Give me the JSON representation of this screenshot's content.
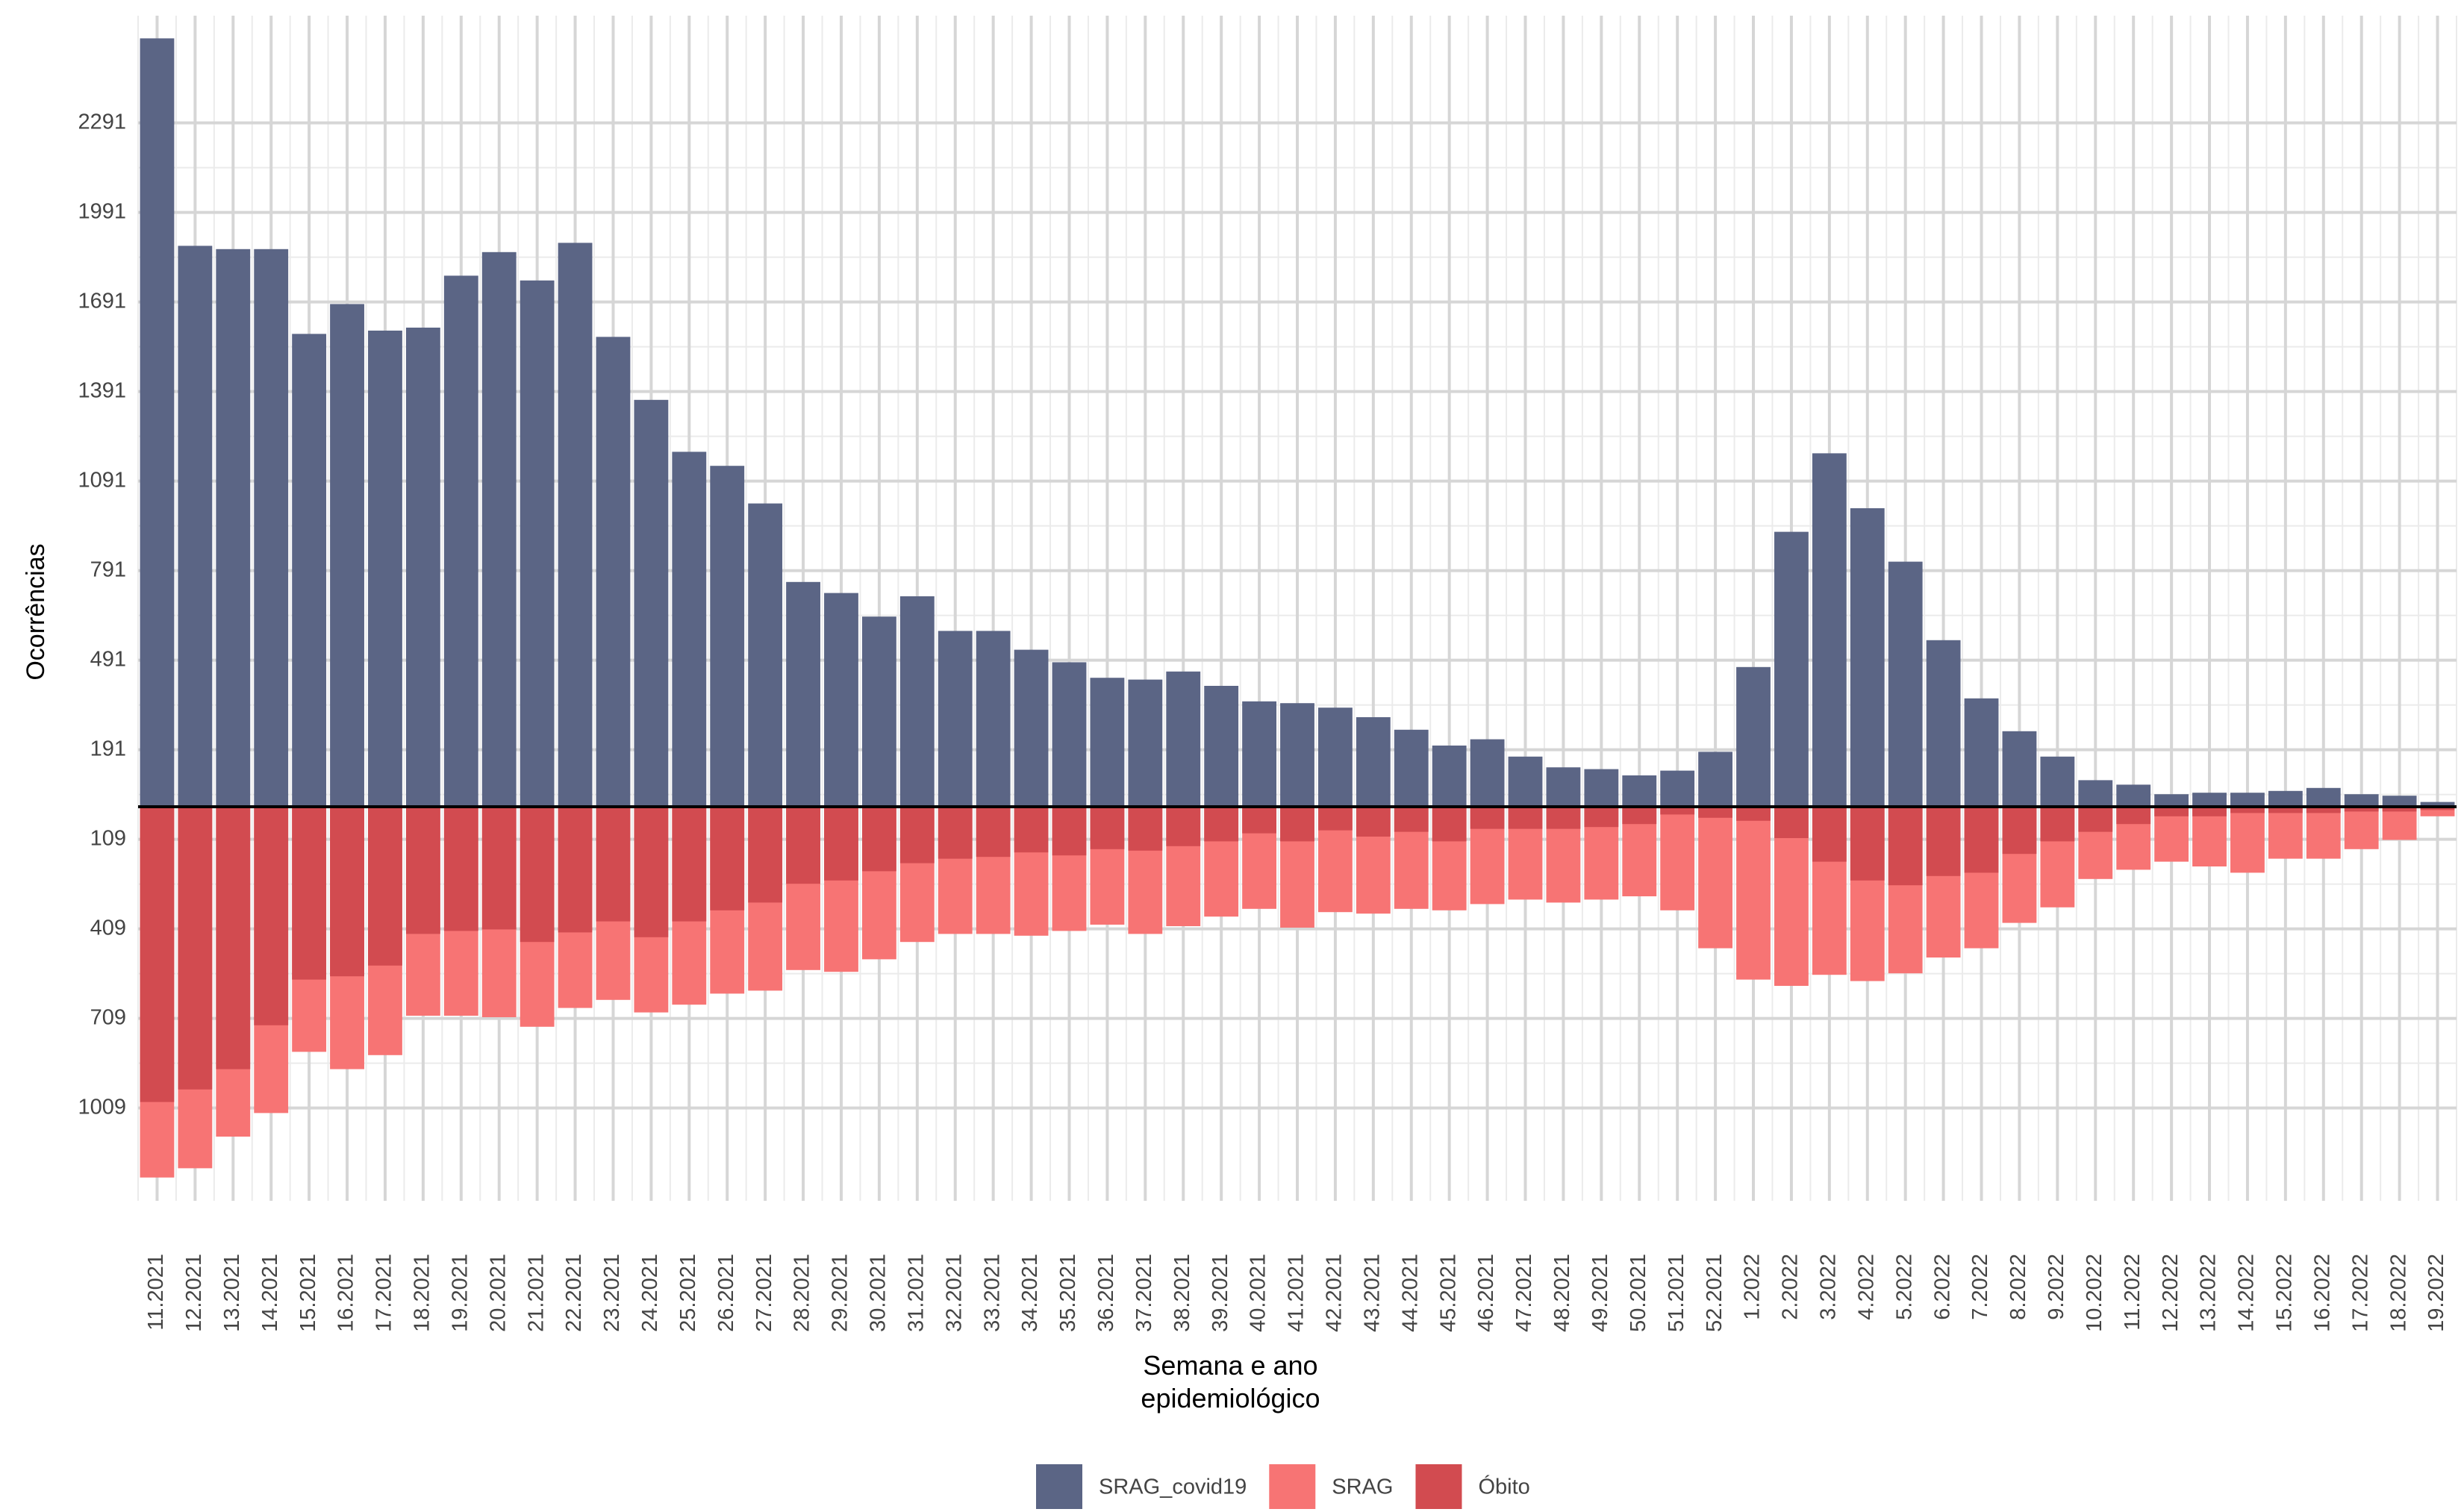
{
  "chart_data": {
    "type": "diverging_bar",
    "x_label": "Semana e ano\nepidemiológico",
    "y_label": "Ocorrências",
    "categories": [
      "11.2021",
      "12.2021",
      "13.2021",
      "14.2021",
      "15.2021",
      "16.2021",
      "17.2021",
      "18.2021",
      "19.2021",
      "20.2021",
      "21.2021",
      "22.2021",
      "23.2021",
      "24.2021",
      "25.2021",
      "26.2021",
      "27.2021",
      "28.2021",
      "29.2021",
      "30.2021",
      "31.2021",
      "32.2021",
      "33.2021",
      "34.2021",
      "35.2021",
      "36.2021",
      "37.2021",
      "38.2021",
      "39.2021",
      "40.2021",
      "41.2021",
      "42.2021",
      "43.2021",
      "44.2021",
      "45.2021",
      "46.2021",
      "47.2021",
      "48.2021",
      "49.2021",
      "50.2021",
      "51.2021",
      "52.2021",
      "1.2022",
      "2.2022",
      "3.2022",
      "4.2022",
      "5.2022",
      "6.2022",
      "7.2022",
      "8.2022",
      "9.2022",
      "10.2022",
      "11.2022",
      "12.2022",
      "13.2022",
      "14.2022",
      "15.2022",
      "16.2022",
      "17.2022",
      "18.2022",
      "19.2022"
    ],
    "series": [
      {
        "name": "SRAG_covid19",
        "color": "#5b6585",
        "values": [
          2574,
          1879,
          1868,
          1868,
          1584,
          1684,
          1595,
          1605,
          1779,
          1858,
          1763,
          1889,
          1574,
          1363,
          1189,
          1142,
          1016,
          753,
          716,
          637,
          705,
          589,
          589,
          526,
          484,
          432,
          426,
          453,
          405,
          353,
          347,
          332,
          300,
          258,
          205,
          226,
          168,
          132,
          126,
          105,
          121,
          184,
          468,
          921,
          1184,
          1000,
          821,
          558,
          363,
          253,
          168,
          89,
          74,
          42,
          47,
          47,
          53,
          63,
          42,
          37,
          16
        ]
      },
      {
        "name": "SRAG",
        "color": "#f77474",
        "values": [
          -1242,
          -1211,
          -1105,
          -1026,
          -821,
          -879,
          -832,
          -700,
          -700,
          -705,
          -737,
          -674,
          -647,
          -689,
          -663,
          -626,
          -616,
          -547,
          -553,
          -511,
          -453,
          -426,
          -426,
          -432,
          -416,
          -395,
          -426,
          -400,
          -368,
          -342,
          -405,
          -353,
          -358,
          -342,
          -347,
          -326,
          -311,
          -321,
          -311,
          -300,
          -347,
          -474,
          -579,
          -600,
          -563,
          -584,
          -558,
          -505,
          -474,
          -389,
          -337,
          -242,
          -211,
          -184,
          -200,
          -221,
          -174,
          -174,
          -142,
          -111,
          -32
        ]
      },
      {
        "name": "Óbito",
        "color": "#d24b50",
        "values": [
          -989,
          -947,
          -879,
          -732,
          -579,
          -568,
          -532,
          -426,
          -416,
          -411,
          -453,
          -421,
          -384,
          -437,
          -384,
          -347,
          -321,
          -258,
          -247,
          -216,
          -189,
          -174,
          -168,
          -153,
          -163,
          -142,
          -147,
          -132,
          -116,
          -89,
          -116,
          -79,
          -100,
          -84,
          -116,
          -74,
          -74,
          -74,
          -68,
          -58,
          -26,
          -37,
          -47,
          -105,
          -184,
          -247,
          -263,
          -232,
          -221,
          -158,
          -116,
          -84,
          -58,
          -32,
          -32,
          -21,
          -21,
          -21,
          -16,
          -16,
          -11
        ]
      }
    ],
    "ylim": [
      -1320,
      2650
    ],
    "yticks": [
      {
        "value": -1009,
        "label": "1009"
      },
      {
        "value": -709,
        "label": "709"
      },
      {
        "value": -409,
        "label": "409"
      },
      {
        "value": -109,
        "label": "109"
      },
      191,
      491,
      791,
      1091,
      1391,
      1691,
      1991,
      2291
    ],
    "grid": true,
    "legend": "bottom"
  }
}
